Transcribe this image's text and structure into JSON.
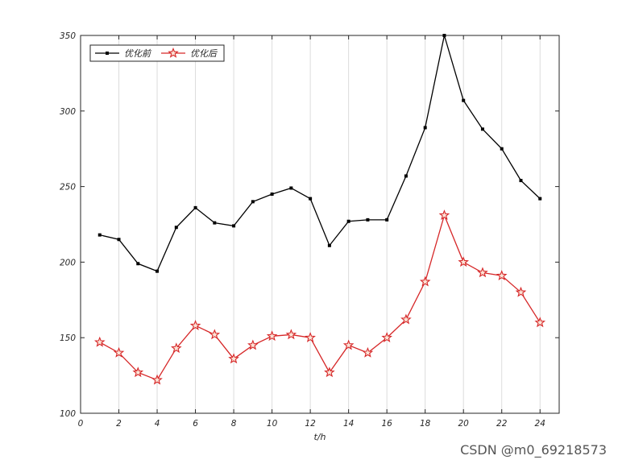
{
  "chart_data": {
    "type": "line",
    "xlabel": "t/h",
    "ylabel": "",
    "xlim": [
      0,
      25
    ],
    "ylim": [
      100,
      350
    ],
    "xticks": [
      0,
      2,
      4,
      6,
      8,
      10,
      12,
      14,
      16,
      18,
      20,
      22,
      24
    ],
    "yticks": [
      100,
      150,
      200,
      250,
      300,
      350
    ],
    "grid": "vertical",
    "legend_position": "top-left",
    "x": [
      1,
      2,
      3,
      4,
      5,
      6,
      7,
      8,
      9,
      10,
      11,
      12,
      13,
      14,
      15,
      16,
      17,
      18,
      19,
      20,
      21,
      22,
      23,
      24
    ],
    "series": [
      {
        "name": "优化前",
        "color": "#000000",
        "marker": "point",
        "values": [
          218,
          215,
          199,
          194,
          223,
          236,
          226,
          224,
          240,
          245,
          249,
          242,
          211,
          227,
          228,
          228,
          257,
          289,
          350,
          307,
          288,
          275,
          254,
          242
        ]
      },
      {
        "name": "优化后",
        "color": "#d62728",
        "marker": "star",
        "values": [
          147,
          140,
          127,
          122,
          143,
          158,
          152,
          136,
          145,
          151,
          152,
          150,
          127,
          145,
          140,
          150,
          162,
          187,
          231,
          200,
          193,
          191,
          180,
          160
        ]
      }
    ]
  },
  "watermark": "CSDN @m0_69218573"
}
